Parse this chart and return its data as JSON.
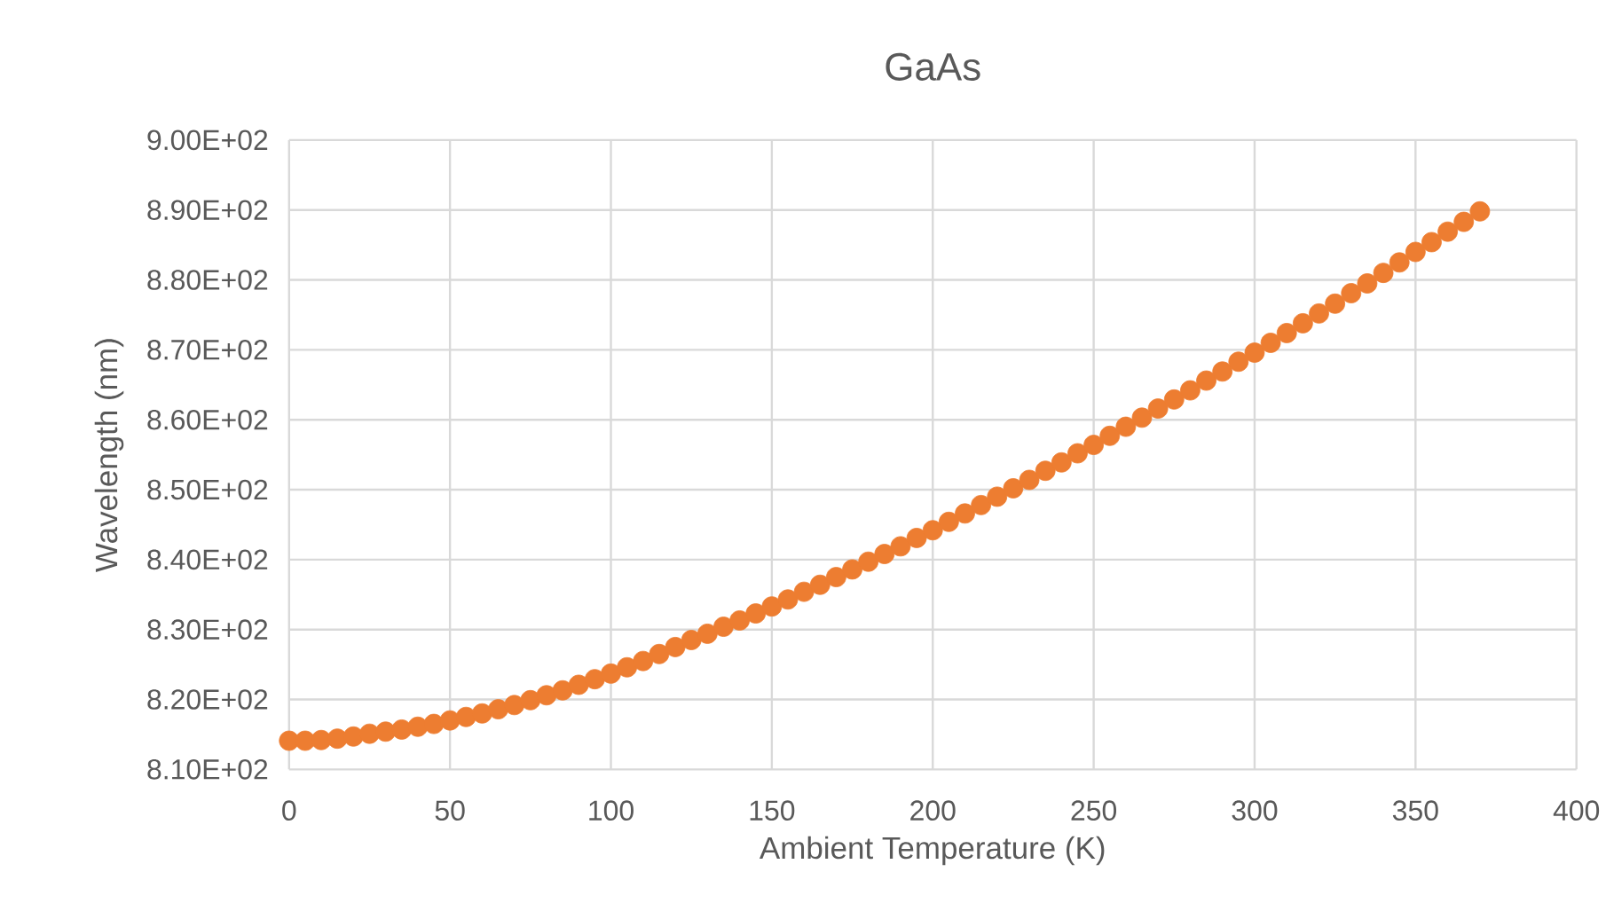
{
  "chart_data": {
    "type": "scatter",
    "title": "GaAs",
    "xlabel": "Ambient Temperature (K)",
    "ylabel": "Wavelength (nm)",
    "x": [
      0,
      5,
      10,
      15,
      20,
      25,
      30,
      35,
      40,
      45,
      50,
      55,
      60,
      65,
      70,
      75,
      80,
      85,
      90,
      95,
      100,
      105,
      110,
      115,
      120,
      125,
      130,
      135,
      140,
      145,
      150,
      155,
      160,
      165,
      170,
      175,
      180,
      185,
      190,
      195,
      200,
      205,
      210,
      215,
      220,
      225,
      230,
      235,
      240,
      245,
      250,
      255,
      260,
      265,
      270,
      275,
      280,
      285,
      290,
      295,
      300,
      305,
      310,
      315,
      320,
      325,
      330,
      335,
      340,
      345,
      350,
      355,
      360,
      365,
      370
    ],
    "series": [
      {
        "color": "#ed7d31",
        "values": [
          814.1,
          814.1,
          814.2,
          814.4,
          814.7,
          815.1,
          815.4,
          815.7,
          816.1,
          816.5,
          817.0,
          817.5,
          818.0,
          818.6,
          819.2,
          819.9,
          820.6,
          821.3,
          822.1,
          822.9,
          823.7,
          824.6,
          825.5,
          826.5,
          827.5,
          828.5,
          829.4,
          830.4,
          831.3,
          832.3,
          833.3,
          834.3,
          835.4,
          836.4,
          837.5,
          838.6,
          839.7,
          840.8,
          841.9,
          843.1,
          844.2,
          845.4,
          846.6,
          847.8,
          849.0,
          850.2,
          851.4,
          852.7,
          853.9,
          855.2,
          856.4,
          857.7,
          859.0,
          860.3,
          861.6,
          862.9,
          864.2,
          865.6,
          866.9,
          868.3,
          869.6,
          871.0,
          872.4,
          873.8,
          875.2,
          876.6,
          878.1,
          879.5,
          881.0,
          882.5,
          884.0,
          885.4,
          886.9,
          888.3,
          889.8
        ]
      }
    ],
    "xlim": [
      0,
      400
    ],
    "xticks": [
      0,
      50,
      100,
      150,
      200,
      250,
      300,
      350,
      400
    ],
    "ylim": [
      810,
      900
    ],
    "yticks": [
      {
        "value": 810,
        "label": "8.10E+02"
      },
      {
        "value": 820,
        "label": "8.20E+02"
      },
      {
        "value": 830,
        "label": "8.30E+02"
      },
      {
        "value": 840,
        "label": "8.40E+02"
      },
      {
        "value": 850,
        "label": "8.50E+02"
      },
      {
        "value": 860,
        "label": "8.60E+02"
      },
      {
        "value": 870,
        "label": "8.70E+02"
      },
      {
        "value": 880,
        "label": "8.80E+02"
      },
      {
        "value": 890,
        "label": "8.90E+02"
      },
      {
        "value": 900,
        "label": "9.00E+02"
      }
    ],
    "grid": true,
    "marker": "circle"
  }
}
